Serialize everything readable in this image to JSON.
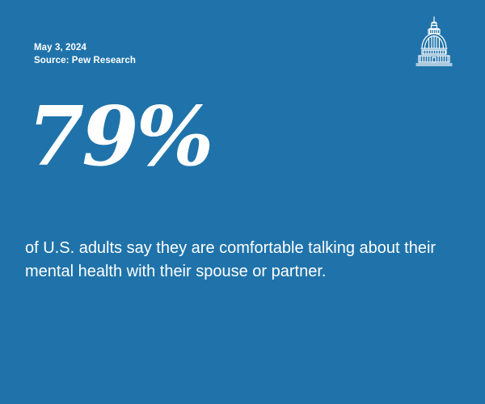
{
  "header": {
    "date": "May 3, 2024",
    "source": "Source: Pew Research"
  },
  "logo": {
    "icon": "capitol-dome-icon"
  },
  "stat": {
    "value": "79%"
  },
  "statement": {
    "text": "of U.S. adults say they are comfortable talking about their mental health with their spouse or partner."
  },
  "colors": {
    "background": "#1f73aa",
    "text": "#ffffff"
  }
}
